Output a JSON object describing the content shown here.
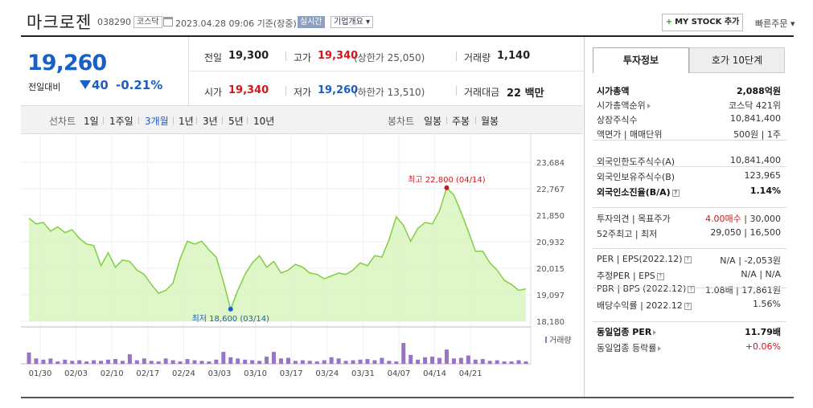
{
  "header": {
    "stock_name": "마크로젠",
    "stock_code": "038290",
    "market": "코스닥",
    "date_text": "2023.04.28 09:06 기준(장중)",
    "realtime": "실시간",
    "company_info": "기업개요 ▾",
    "mystock_label": "MY STOCK 추가",
    "quick_order": "빠른주문 ▾"
  },
  "price": {
    "current": "19,260",
    "change_label": "전일대비",
    "change_value": "40",
    "change_pct": "-0.21%"
  },
  "quote": {
    "prev_close_label": "전일",
    "prev_close": "19,300",
    "high_label": "고가",
    "high": "19,340",
    "upper_limit": "(상한가 25,050)",
    "volume_label": "거래량",
    "volume": "1,140",
    "open_label": "시가",
    "open": "19,340",
    "low_label": "저가",
    "low": "19,260",
    "lower_limit": "(하한가 13,510)",
    "amount_label": "거래대금",
    "amount": "22 백만"
  },
  "periods": {
    "line_label": "선차트",
    "line": [
      "1일",
      "1주일",
      "3개월",
      "1년",
      "3년",
      "5년",
      "10년"
    ],
    "active": "3개월",
    "candle_label": "봉차트",
    "candle": [
      "일봉",
      "주봉",
      "월봉"
    ]
  },
  "chart_data": {
    "type": "area",
    "y_ticks": [
      "23,684",
      "22,767",
      "21,850",
      "20,932",
      "20,015",
      "19,097",
      "18,180"
    ],
    "ylim": [
      18180,
      23684
    ],
    "x_ticks": [
      "01/30",
      "02/03",
      "02/10",
      "02/17",
      "02/24",
      "03/03",
      "03/10",
      "03/17",
      "03/24",
      "03/31",
      "04/07",
      "04/14",
      "04/21"
    ],
    "prices": [
      21750,
      21550,
      21600,
      21300,
      21450,
      21250,
      21350,
      21050,
      20850,
      20800,
      20100,
      20550,
      20050,
      20300,
      20250,
      19950,
      19800,
      19450,
      19150,
      19250,
      19500,
      20350,
      20950,
      20850,
      20950,
      20650,
      20400,
      19550,
      18600,
      19250,
      19800,
      20200,
      20450,
      20050,
      20250,
      19850,
      19950,
      20150,
      20050,
      19850,
      19800,
      19650,
      19750,
      19850,
      19800,
      19950,
      20200,
      20100,
      20450,
      20400,
      21000,
      21800,
      21500,
      20950,
      21400,
      21600,
      21550,
      22000,
      22800,
      22550,
      21950,
      21300,
      20600,
      20600,
      20200,
      19950,
      19600,
      19450,
      19250,
      19300
    ],
    "volumes": [
      38,
      18,
      14,
      18,
      8,
      14,
      10,
      12,
      8,
      12,
      10,
      14,
      16,
      10,
      32,
      12,
      18,
      10,
      8,
      18,
      12,
      8,
      16,
      12,
      10,
      8,
      14,
      40,
      22,
      18,
      14,
      12,
      10,
      24,
      40,
      18,
      20,
      10,
      12,
      10,
      8,
      12,
      22,
      18,
      10,
      12,
      14,
      16,
      12,
      20,
      10,
      8,
      70,
      30,
      14,
      22,
      24,
      20,
      48,
      18,
      20,
      28,
      14,
      16,
      10,
      12,
      8,
      8,
      12,
      8
    ],
    "max_label": "최고 22,800 (04/14)",
    "min_label": "최저 18,600 (03/14)",
    "max_index": 58,
    "min_index": 28,
    "volume_legend": "거래량",
    "line_color": "#7fd03f",
    "fill_color": "#d9f5bf",
    "volume_color": "#9a72c6"
  },
  "sidebar": {
    "tabs": [
      "투자정보",
      "호가 10단계"
    ],
    "rows": [
      {
        "label": "시가총액",
        "value": "2,088억원",
        "bold": true
      },
      {
        "label": "시가총액순위",
        "value": "코스닥 421위",
        "arrow": true
      },
      {
        "label": "상장주식수",
        "value": "10,841,400"
      },
      {
        "label": "액면가 | 매매단위",
        "value": "500원 | 1주"
      },
      {
        "label": "외국인한도주식수(A)",
        "value": "10,841,400"
      },
      {
        "label": "외국인보유주식수(B)",
        "value": "123,965"
      },
      {
        "label": "외국인소진율(B/A)",
        "value": "1.14%",
        "bold": true,
        "q": true
      },
      {
        "label": "투자의견 | 목표주가",
        "value": "4.00매수 | 30,000",
        "red_prefix": "4.00매수"
      },
      {
        "label": "52주최고 | 최저",
        "value": "29,050 | 16,500"
      },
      {
        "label": "PER | EPS(2022.12)",
        "value": "N/A | -2,053원",
        "q": true
      },
      {
        "label": "추정PER | EPS",
        "value": "N/A | N/A",
        "q": true
      },
      {
        "label": "PBR | BPS (2022.12)",
        "value": "1.08배 | 17,861원",
        "q": true
      },
      {
        "label": "배당수익률 | 2022.12",
        "value": "1.56%",
        "q": true
      },
      {
        "label": "동일업종 PER",
        "value": "11.79배",
        "bold": true,
        "arrow": true
      },
      {
        "label": "동일업종 등락률",
        "value": "+0.06%",
        "arrow": true,
        "red": true
      }
    ]
  }
}
